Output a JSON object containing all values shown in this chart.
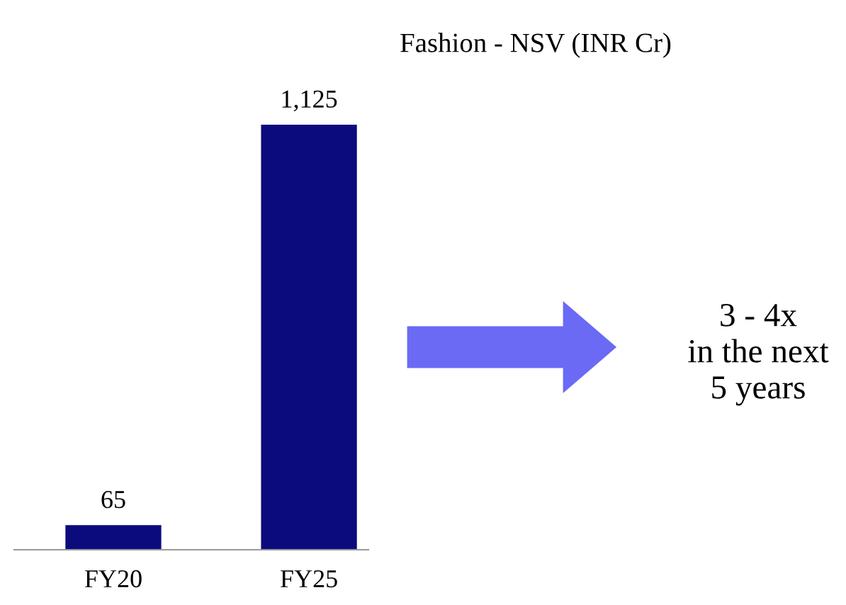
{
  "chart_data": {
    "type": "bar",
    "title": "Fashion - NSV (INR Cr)",
    "categories": [
      "FY20",
      "FY25"
    ],
    "values": [
      65,
      1125
    ],
    "color": "#0b0b7d",
    "value_labels": [
      "65",
      "1,125"
    ],
    "tick_labels": "x",
    "grid": false,
    "legend": false,
    "annotations": [
      "3 - 4x\nin the next\n5 years"
    ]
  }
}
